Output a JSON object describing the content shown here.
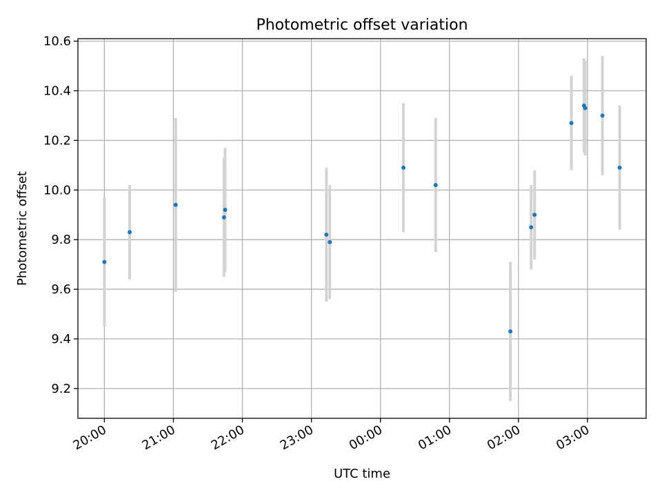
{
  "chart_data": {
    "type": "scatter",
    "title": "Photometric offset variation",
    "xlabel": "UTC time",
    "ylabel": "Photometric offset",
    "x_ticks": [
      "20:00",
      "21:00",
      "22:00",
      "23:00",
      "00:00",
      "01:00",
      "02:00",
      "03:00"
    ],
    "y_ticks": [
      "9.2",
      "9.4",
      "9.6",
      "9.8",
      "10.0",
      "10.2",
      "10.4",
      "10.6"
    ],
    "xlim": [
      "19:37",
      "03:51"
    ],
    "ylim": [
      9.08,
      10.61
    ],
    "grid": true,
    "colors": {
      "point": "#1f77b4",
      "errorbar": "#d3d3d3",
      "grid": "#b0b0b0"
    },
    "series": [
      {
        "points": [
          {
            "x": "20:00",
            "y": 9.71,
            "yerr": 0.26
          },
          {
            "x": "20:22",
            "y": 9.83,
            "yerr": 0.19
          },
          {
            "x": "21:02",
            "y": 9.94,
            "yerr": 0.35
          },
          {
            "x": "21:44",
            "y": 9.89,
            "yerr": 0.24
          },
          {
            "x": "21:45",
            "y": 9.92,
            "yerr": 0.25
          },
          {
            "x": "23:13",
            "y": 9.82,
            "yerr": 0.27
          },
          {
            "x": "23:16",
            "y": 9.79,
            "yerr": 0.23
          },
          {
            "x": "00:20",
            "y": 10.09,
            "yerr": 0.26
          },
          {
            "x": "00:48",
            "y": 10.02,
            "yerr": 0.27
          },
          {
            "x": "01:53",
            "y": 9.43,
            "yerr": 0.28
          },
          {
            "x": "02:11",
            "y": 9.85,
            "yerr": 0.17
          },
          {
            "x": "02:14",
            "y": 9.9,
            "yerr": 0.18
          },
          {
            "x": "02:46",
            "y": 10.27,
            "yerr": 0.19
          },
          {
            "x": "02:57",
            "y": 10.34,
            "yerr": 0.19
          },
          {
            "x": "02:58",
            "y": 10.33,
            "yerr": 0.19
          },
          {
            "x": "03:13",
            "y": 10.3,
            "yerr": 0.24
          },
          {
            "x": "03:28",
            "y": 10.09,
            "yerr": 0.25
          }
        ]
      }
    ]
  }
}
